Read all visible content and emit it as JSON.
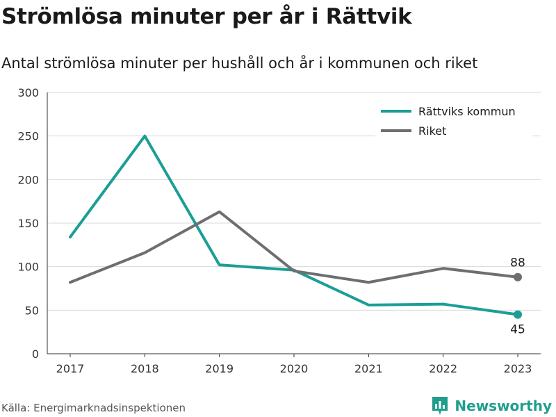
{
  "title": "Strömlösa minuter per år i Rättvik",
  "subtitle": "Antal strömlösa minuter per hushåll och år i kommunen och riket",
  "source": "Källa: Energimarknadsinspektionen",
  "brand": "Newsworthy",
  "colors": {
    "rattvik": "#1a9e96",
    "riket": "#6e6e72",
    "grid": "#d9d9d9",
    "brand": "#1f9e8e"
  },
  "chart_data": {
    "type": "line",
    "x": [
      "2017",
      "2018",
      "2019",
      "2020",
      "2021",
      "2022",
      "2023"
    ],
    "series": [
      {
        "name": "Rättviks kommun",
        "values": [
          134,
          250,
          102,
          96,
          56,
          57,
          45
        ]
      },
      {
        "name": "Riket",
        "values": [
          82,
          116,
          163,
          95,
          82,
          98,
          88
        ]
      }
    ],
    "end_labels": [
      "45",
      "88"
    ],
    "ylim": [
      0,
      300
    ],
    "yticks": [
      0,
      50,
      100,
      150,
      200,
      250,
      300
    ],
    "grid": true,
    "legend_position": "top-right"
  }
}
